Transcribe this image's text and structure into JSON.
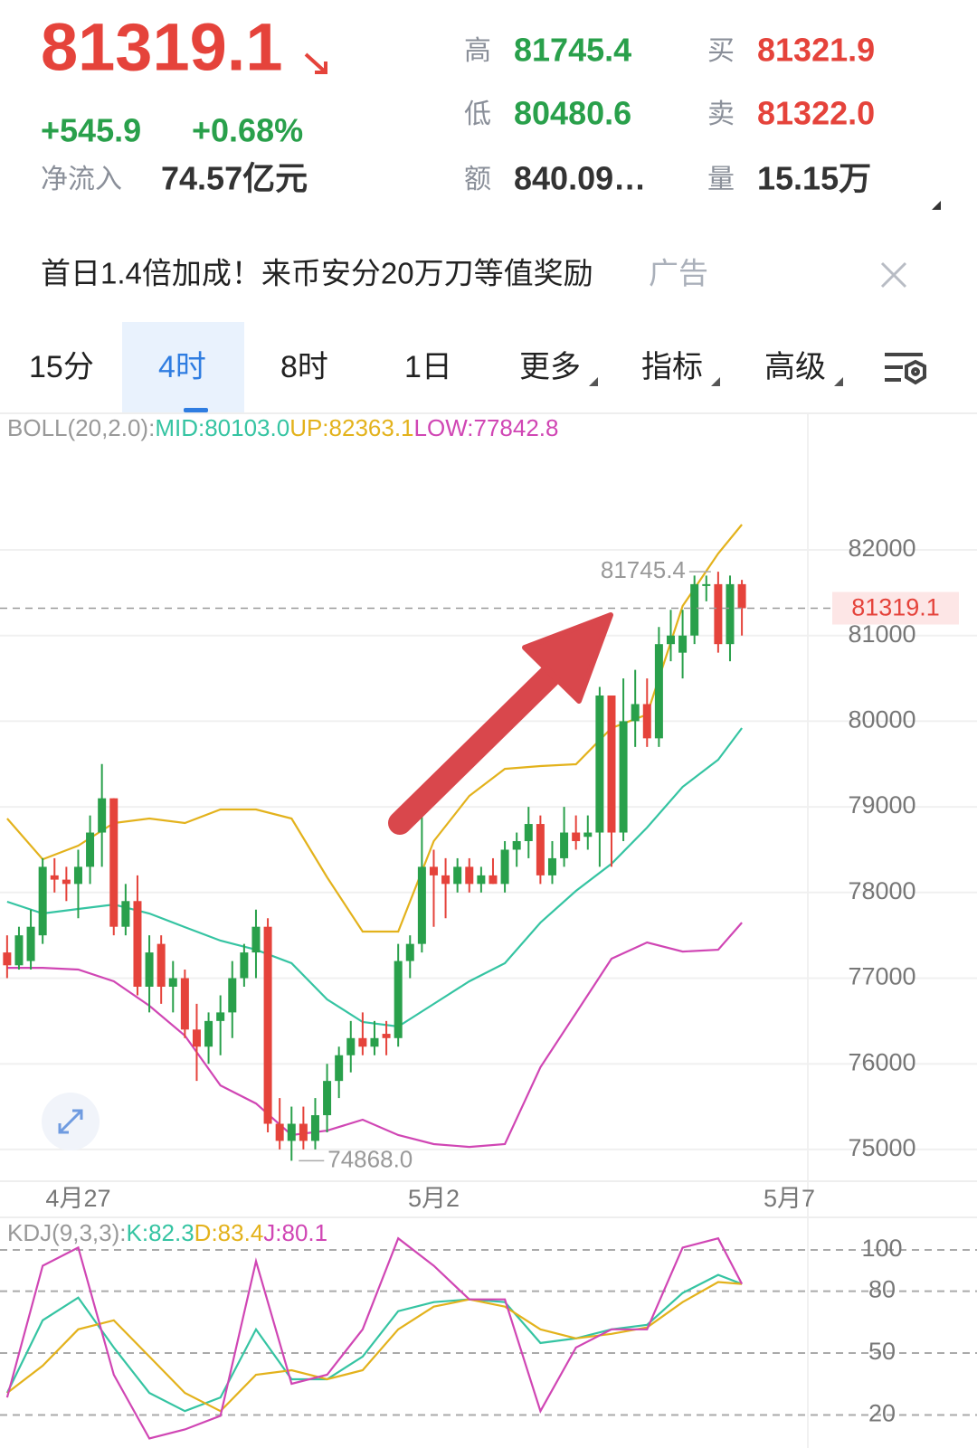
{
  "header": {
    "price": "81319.1",
    "change": "+545.9",
    "change_pct": "+0.68%",
    "net_inflow_label": "净流入",
    "net_inflow": "74.57亿元",
    "stats": [
      {
        "label": "高",
        "value": "81745.4"
      },
      {
        "label": "低",
        "value": "80480.6"
      },
      {
        "label": "额",
        "value": "840.09…"
      },
      {
        "label": "买",
        "value": "81321.9"
      },
      {
        "label": "卖",
        "value": "81322.0"
      },
      {
        "label": "量",
        "value": "15.15万"
      }
    ]
  },
  "ad": {
    "text": "首日1.4倍加成！来币安分20万刀等值奖励",
    "tag": "广告"
  },
  "tabs": [
    "15分",
    "4时",
    "8时",
    "1日",
    "更多",
    "指标",
    "高级"
  ],
  "chart_data": [
    {
      "type": "candlestick",
      "title": "BOLL(20,2.0):",
      "x": [
        0,
        1,
        2,
        3,
        4,
        5,
        6,
        7,
        8,
        9,
        10,
        11,
        12,
        13,
        14,
        15,
        16,
        17,
        18,
        19,
        20,
        21,
        22,
        23,
        24,
        25,
        26,
        27,
        28,
        29,
        30,
        31,
        32,
        33,
        34,
        35,
        36,
        37,
        38,
        39,
        40,
        41,
        42,
        43,
        44,
        45,
        46,
        47,
        48,
        49,
        50,
        51,
        52,
        53,
        54,
        55,
        56,
        57,
        58,
        59,
        60,
        61,
        62
      ],
      "open": [
        77300,
        77150,
        77200,
        77500,
        78200,
        78150,
        78100,
        78300,
        78700,
        79100,
        77600,
        77900,
        76900,
        77400,
        76900,
        77000,
        76400,
        76200,
        76500,
        76600,
        77000,
        77300,
        77600,
        75300,
        75100,
        75300,
        75100,
        75400,
        75800,
        76100,
        76300,
        76200,
        76350,
        76300,
        77200,
        77400,
        78300,
        78200,
        78100,
        78300,
        78100,
        78200,
        78100,
        78500,
        78600,
        78800,
        78200,
        78400,
        78700,
        78650,
        78700,
        80300,
        78700,
        80000,
        80200,
        79800,
        80900,
        80800,
        81000,
        81600,
        81600,
        80900,
        81600
      ],
      "high": [
        77500,
        77600,
        77800,
        78400,
        78400,
        78300,
        78500,
        78900,
        79500,
        79100,
        78100,
        78200,
        77500,
        77500,
        77200,
        77100,
        76700,
        76600,
        76800,
        77200,
        77400,
        77800,
        77700,
        75600,
        75500,
        75500,
        75600,
        76000,
        76200,
        76500,
        76600,
        76500,
        76500,
        77400,
        77500,
        78900,
        78500,
        78400,
        78400,
        78400,
        78300,
        78400,
        78600,
        78700,
        79000,
        78900,
        78600,
        79000,
        78900,
        78900,
        80400,
        80300,
        80500,
        80600,
        80500,
        81100,
        81300,
        81300,
        81700,
        81700,
        81745.4,
        81700,
        81650
      ],
      "low": [
        77000,
        77100,
        77100,
        77400,
        78000,
        77900,
        77700,
        78100,
        78300,
        77500,
        77500,
        76800,
        76600,
        76700,
        76600,
        76300,
        75800,
        76000,
        76100,
        76300,
        76900,
        77000,
        75200,
        75000,
        74868,
        75000,
        75000,
        75200,
        75600,
        75900,
        76100,
        76100,
        76100,
        76200,
        77000,
        77300,
        77600,
        77700,
        78000,
        78000,
        78000,
        78100,
        78000,
        78300,
        78400,
        78100,
        78100,
        78300,
        78500,
        78500,
        78300,
        78300,
        78600,
        79700,
        79700,
        79700,
        80700,
        80500,
        80900,
        81400,
        80800,
        80700,
        81000
      ],
      "close": [
        77150,
        77500,
        77600,
        78300,
        78150,
        78100,
        78300,
        78700,
        79100,
        77600,
        77900,
        76900,
        77300,
        76900,
        77000,
        76400,
        76200,
        76500,
        76600,
        77000,
        77300,
        77600,
        75300,
        75100,
        75300,
        75100,
        75400,
        75800,
        76100,
        76300,
        76200,
        76300,
        76300,
        77200,
        77400,
        78300,
        78200,
        78100,
        78300,
        78100,
        78200,
        78100,
        78500,
        78600,
        78800,
        78200,
        78400,
        78700,
        78600,
        78700,
        80300,
        78700,
        80000,
        80200,
        79800,
        80900,
        81000,
        81000,
        81600,
        81600,
        80900,
        81600,
        81319.1
      ],
      "up_color": "#29a04b",
      "down_color": "#e5433b",
      "xlim": [
        -0.6,
        68.1
      ],
      "ylim": [
        74640,
        83563
      ],
      "yticks": [
        75000,
        76000,
        77000,
        78000,
        79000,
        80000,
        81000,
        82000
      ],
      "xticks": [
        {
          "value": 6,
          "label": "4月27"
        },
        {
          "value": 36,
          "label": "5月2"
        },
        {
          "value": 66,
          "label": "5月7"
        }
      ],
      "grid": "solid",
      "last_price": 81319.1,
      "annotations": [
        {
          "value": 81745.4,
          "label": "81745.4"
        },
        {
          "value": 74868,
          "label": "74868.0"
        }
      ],
      "series": [
        {
          "name": "MID:80103.0",
          "color": "#35c4a2",
          "x": [
            0,
            3,
            6,
            9,
            12,
            15,
            18,
            21,
            24,
            27,
            30,
            33,
            36,
            39,
            42,
            45,
            48,
            51,
            54,
            57,
            60,
            62
          ],
          "values": [
            77892,
            77755,
            77808,
            77860,
            77755,
            77596,
            77438,
            77332,
            77174,
            76752,
            76488,
            76435,
            76699,
            76963,
            77174,
            77649,
            78019,
            78336,
            78758,
            79233,
            79550,
            79920
          ]
        },
        {
          "name": "UP:82363.1",
          "color": "#e3b21c",
          "x": [
            0,
            3,
            6,
            9,
            12,
            15,
            18,
            21,
            24,
            27,
            30,
            33,
            36,
            39,
            42,
            45,
            48,
            51,
            54,
            57,
            60,
            62
          ],
          "values": [
            78864,
            78388,
            78547,
            78811,
            78864,
            78811,
            78969,
            78969,
            78864,
            78177,
            77544,
            77544,
            78600,
            79128,
            79444,
            79476,
            79497,
            79920,
            80078,
            81345,
            81958,
            82296
          ]
        },
        {
          "name": "LOW:77842.8",
          "color": "#d046b4",
          "x": [
            0,
            3,
            6,
            9,
            12,
            15,
            18,
            21,
            24,
            27,
            30,
            33,
            36,
            39,
            42,
            45,
            48,
            51,
            54,
            57,
            60,
            62
          ],
          "values": [
            77121,
            77121,
            77100,
            76963,
            76678,
            76329,
            75748,
            75537,
            75168,
            75220,
            75347,
            75168,
            75062,
            75030,
            75062,
            75960,
            76593,
            77227,
            77417,
            77311,
            77332,
            77649
          ]
        }
      ]
    },
    {
      "type": "line",
      "title": "KDJ(9,3,3):",
      "xlim": [
        -0.6,
        68.1
      ],
      "ylim": [
        4,
        114
      ],
      "yticks": [
        100,
        80,
        50,
        20
      ],
      "grid": "dashed",
      "series": [
        {
          "name": "K:82.3",
          "color": "#35c4a2",
          "x": [
            0,
            3,
            6,
            9,
            12,
            15,
            18,
            21,
            24,
            27,
            30,
            33,
            36,
            39,
            42,
            45,
            48,
            51,
            54,
            57,
            60,
            62
          ],
          "values": [
            30.7,
            65.9,
            76.9,
            52.7,
            30.7,
            21.9,
            28.5,
            61.5,
            37.3,
            37.3,
            48.3,
            70.3,
            74.7,
            76.0,
            74.7,
            54.9,
            57.1,
            61.5,
            63.7,
            79.1,
            87.9,
            83.5
          ]
        },
        {
          "name": "D:83.4",
          "color": "#e3b21c",
          "x": [
            0,
            3,
            6,
            9,
            12,
            15,
            18,
            21,
            24,
            27,
            30,
            33,
            36,
            39,
            42,
            45,
            48,
            51,
            54,
            57,
            60,
            62
          ],
          "values": [
            30.7,
            43.9,
            61.5,
            65.9,
            48.3,
            30.7,
            21.9,
            39.5,
            41.7,
            37.3,
            41.7,
            61.5,
            72.5,
            76.0,
            72.5,
            61.5,
            57.1,
            59.3,
            62.4,
            74.7,
            84.4,
            83.5
          ]
        },
        {
          "name": "J:80.1",
          "color": "#d046b4",
          "x": [
            0,
            3,
            6,
            9,
            12,
            15,
            18,
            21,
            24,
            27,
            30,
            33,
            36,
            39,
            42,
            45,
            48,
            51,
            54,
            57,
            60,
            62
          ],
          "values": [
            28.5,
            92.3,
            101.1,
            39.5,
            8.6,
            13.0,
            19.6,
            94.5,
            35.1,
            39.5,
            61.5,
            105.6,
            92.3,
            76.0,
            76.0,
            21.9,
            52.7,
            61.5,
            61.5,
            101.1,
            105.6,
            83.5
          ]
        }
      ]
    }
  ]
}
